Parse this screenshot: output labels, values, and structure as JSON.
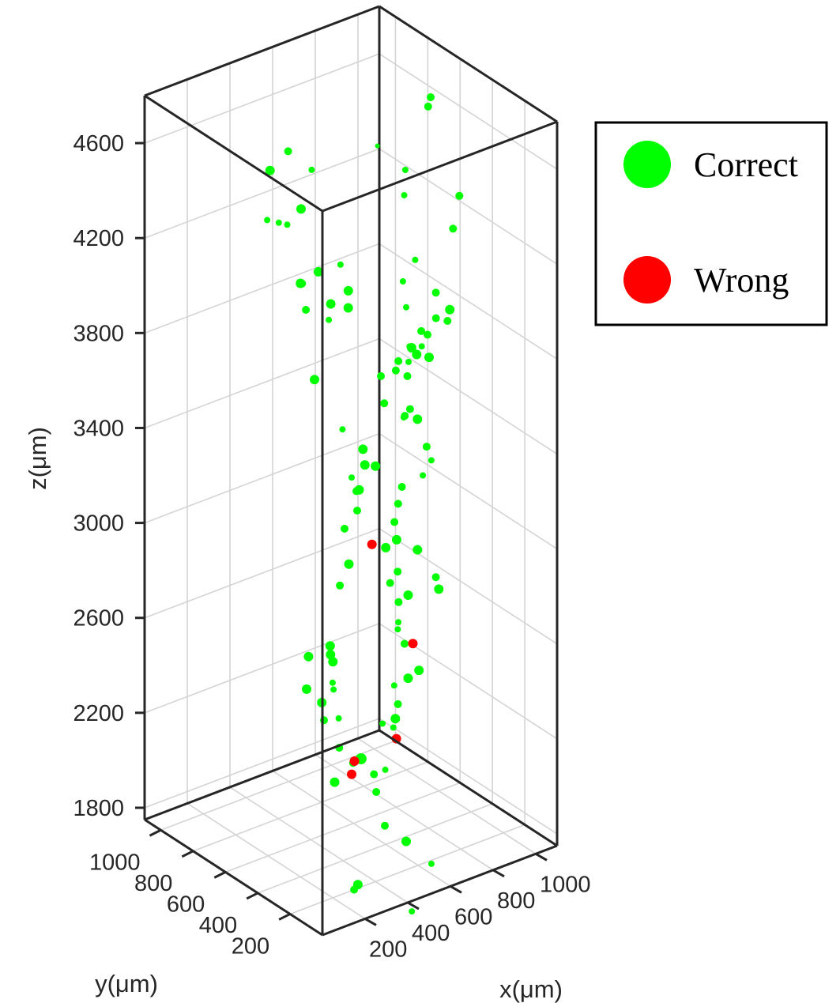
{
  "chart_data": {
    "type": "scatter",
    "projection": "3d",
    "title": "",
    "xlabel": "x(μm)",
    "ylabel": "y(μm)",
    "zlabel": "z(μm)",
    "xlim": [
      0,
      1100
    ],
    "ylim": [
      0,
      1100
    ],
    "zlim": [
      1750,
      4800
    ],
    "xticks": [
      "200",
      "400",
      "600",
      "800",
      "1000"
    ],
    "yticks": [
      "200",
      "400",
      "600",
      "800",
      "1000"
    ],
    "zticks": [
      "1800",
      "2200",
      "2600",
      "3000",
      "3400",
      "3800",
      "4200",
      "4600"
    ],
    "grid": true,
    "legend": {
      "position": "outside-top-right",
      "entries": [
        "Correct",
        "Wrong"
      ]
    },
    "colors": {
      "Correct": "#00ff00",
      "Wrong": "#ff0000"
    },
    "series": [
      {
        "name": "Correct",
        "points": [
          [
            470,
            280,
            4790,
            3
          ],
          [
            540,
            200,
            4700,
            4
          ],
          [
            950,
            600,
            4650,
            5
          ],
          [
            1000,
            650,
            4650,
            5
          ],
          [
            120,
            500,
            4500,
            4
          ],
          [
            300,
            720,
            4550,
            6
          ],
          [
            430,
            780,
            4560,
            5
          ],
          [
            480,
            700,
            4500,
            4
          ],
          [
            150,
            300,
            4200,
            5
          ],
          [
            200,
            400,
            4250,
            6
          ],
          [
            250,
            600,
            4400,
            4
          ],
          [
            320,
            640,
            4350,
            4
          ],
          [
            400,
            660,
            4380,
            6
          ],
          [
            360,
            500,
            4200,
            6
          ],
          [
            380,
            450,
            4080,
            6
          ],
          [
            420,
            680,
            4050,
            5
          ],
          [
            470,
            460,
            4100,
            6
          ],
          [
            500,
            500,
            4000,
            6
          ],
          [
            280,
            330,
            4100,
            4
          ],
          [
            350,
            350,
            4300,
            4
          ],
          [
            160,
            260,
            3920,
            6
          ],
          [
            200,
            140,
            3750,
            4
          ],
          [
            620,
            320,
            4150,
            4
          ],
          [
            700,
            350,
            4200,
            4
          ],
          [
            620,
            300,
            4050,
            4
          ],
          [
            900,
            380,
            4250,
            5
          ],
          [
            960,
            420,
            4350,
            5
          ],
          [
            800,
            550,
            4350,
            4
          ],
          [
            540,
            180,
            3900,
            4
          ],
          [
            560,
            200,
            3950,
            4
          ],
          [
            580,
            240,
            3800,
            5
          ],
          [
            500,
            150,
            3700,
            5
          ],
          [
            720,
            300,
            3900,
            5
          ],
          [
            820,
            380,
            3900,
            5
          ],
          [
            850,
            420,
            3980,
            5
          ],
          [
            900,
            400,
            3900,
            6
          ],
          [
            950,
            480,
            3800,
            5
          ],
          [
            600,
            250,
            3650,
            5
          ],
          [
            760,
            420,
            3750,
            6
          ],
          [
            880,
            550,
            3750,
            5
          ],
          [
            920,
            600,
            3650,
            4
          ],
          [
            1000,
            660,
            3550,
            6
          ],
          [
            1100,
            900,
            3450,
            6
          ],
          [
            1000,
            850,
            3450,
            5
          ],
          [
            950,
            800,
            3450,
            5
          ],
          [
            760,
            500,
            3450,
            4
          ],
          [
            820,
            700,
            3400,
            5
          ],
          [
            880,
            800,
            3450,
            5
          ],
          [
            900,
            600,
            3350,
            6
          ],
          [
            660,
            250,
            3350,
            4
          ],
          [
            600,
            300,
            3300,
            5
          ],
          [
            640,
            200,
            3500,
            5
          ],
          [
            700,
            250,
            3400,
            4
          ],
          [
            620,
            350,
            3200,
            5
          ],
          [
            580,
            320,
            3150,
            5
          ],
          [
            560,
            280,
            3100,
            6
          ],
          [
            600,
            400,
            3000,
            6
          ],
          [
            580,
            300,
            2950,
            5
          ],
          [
            560,
            320,
            2900,
            5
          ],
          [
            400,
            200,
            3500,
            6
          ],
          [
            320,
            160,
            3550,
            6
          ],
          [
            360,
            260,
            3300,
            5
          ],
          [
            440,
            330,
            3500,
            6
          ],
          [
            460,
            380,
            3300,
            6
          ],
          [
            440,
            400,
            3350,
            4
          ],
          [
            500,
            450,
            3250,
            5
          ],
          [
            200,
            100,
            3200,
            6
          ],
          [
            240,
            180,
            3300,
            5
          ],
          [
            150,
            150,
            2850,
            6
          ],
          [
            140,
            120,
            2800,
            6
          ],
          [
            220,
            240,
            2750,
            6
          ],
          [
            200,
            350,
            2700,
            6
          ],
          [
            100,
            230,
            2650,
            6
          ],
          [
            400,
            420,
            2900,
            5
          ],
          [
            380,
            460,
            2600,
            4
          ],
          [
            300,
            400,
            2450,
            6
          ],
          [
            280,
            360,
            2400,
            5
          ],
          [
            260,
            280,
            2600,
            4
          ],
          [
            340,
            380,
            2500,
            4
          ],
          [
            300,
            320,
            2150,
            6
          ],
          [
            280,
            180,
            2300,
            5
          ],
          [
            200,
            160,
            2400,
            5
          ],
          [
            440,
            480,
            2300,
            4
          ],
          [
            660,
            400,
            2750,
            5
          ],
          [
            720,
            420,
            2750,
            6
          ],
          [
            900,
            600,
            2800,
            6
          ],
          [
            1000,
            600,
            2600,
            6
          ],
          [
            1100,
            750,
            2550,
            5
          ],
          [
            1000,
            850,
            2350,
            4
          ],
          [
            1020,
            880,
            2300,
            4
          ],
          [
            650,
            350,
            2600,
            5
          ],
          [
            680,
            300,
            2500,
            6
          ],
          [
            720,
            420,
            2400,
            6
          ],
          [
            680,
            430,
            2300,
            5
          ],
          [
            660,
            420,
            2250,
            6
          ],
          [
            700,
            480,
            2350,
            4
          ],
          [
            560,
            300,
            2300,
            4
          ],
          [
            600,
            420,
            2250,
            4
          ],
          [
            560,
            420,
            2050,
            5
          ],
          [
            560,
            350,
            2100,
            4
          ],
          [
            540,
            380,
            2000,
            5
          ],
          [
            280,
            150,
            1800,
            6
          ],
          [
            300,
            200,
            1750,
            5
          ],
          [
            520,
            300,
            1900,
            5
          ],
          [
            620,
            300,
            1800,
            6
          ],
          [
            700,
            250,
            1700,
            4
          ],
          [
            480,
            80,
            1650,
            4
          ],
          [
            560,
            500,
            2080,
            7
          ]
        ]
      },
      {
        "name": "Wrong",
        "points": [
          [
            520,
            380,
            3050,
            6
          ],
          [
            400,
            330,
            2200,
            6
          ],
          [
            440,
            400,
            2100,
            6
          ],
          [
            680,
            440,
            2150,
            6
          ],
          [
            1000,
            760,
            2300,
            6
          ]
        ]
      }
    ]
  }
}
